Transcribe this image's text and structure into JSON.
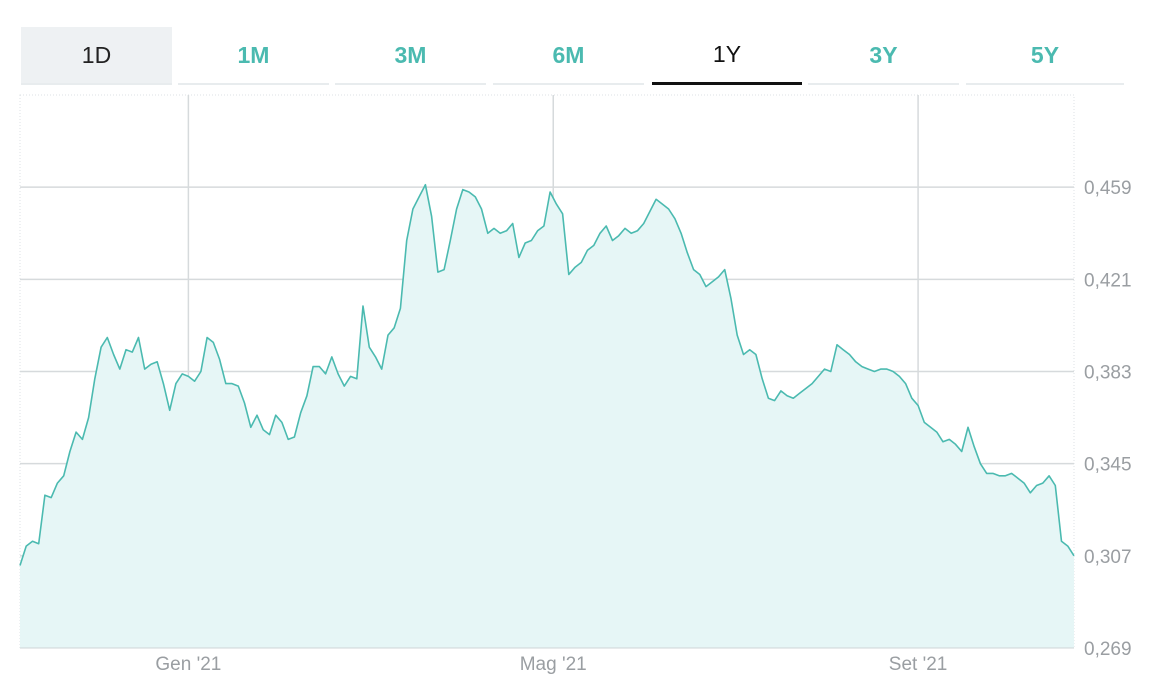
{
  "range_tabs": [
    {
      "label": "1D",
      "state": "highlighted"
    },
    {
      "label": "1M",
      "state": "normal"
    },
    {
      "label": "3M",
      "state": "normal"
    },
    {
      "label": "6M",
      "state": "normal"
    },
    {
      "label": "1Y",
      "state": "active"
    },
    {
      "label": "3Y",
      "state": "normal"
    },
    {
      "label": "5Y",
      "state": "normal"
    }
  ],
  "colors": {
    "line": "#4bbab0",
    "fill": "#e6f6f6",
    "grid": "#d6dadc",
    "tick_text": "#9a9ea2",
    "tab_text": "#4bbab0"
  },
  "chart_data": {
    "type": "area",
    "y_axis_side": "right",
    "ylim": [
      0.269,
      0.497
    ],
    "y_ticks": [
      {
        "value": 0.269,
        "label": "0,269"
      },
      {
        "value": 0.307,
        "label": "0,307"
      },
      {
        "value": 0.345,
        "label": "0,345"
      },
      {
        "value": 0.383,
        "label": "0,383"
      },
      {
        "value": 0.421,
        "label": "0,421"
      },
      {
        "value": 0.459,
        "label": "0,459"
      }
    ],
    "x_ticks": [
      {
        "day": 54,
        "label": "Gen '21"
      },
      {
        "day": 171,
        "label": "Mag '21"
      },
      {
        "day": 288,
        "label": "Set '21"
      }
    ],
    "x_range": [
      0,
      338
    ],
    "grid": true,
    "series": [
      {
        "x": [
          0,
          2,
          4,
          6,
          8,
          10,
          12,
          14,
          16,
          18,
          20,
          22,
          24,
          26,
          28,
          30,
          32,
          34,
          36,
          38,
          40,
          42,
          44,
          46,
          48,
          50,
          52,
          54,
          56,
          58,
          60,
          62,
          64,
          66,
          68,
          70,
          72,
          74,
          76,
          78,
          80,
          82,
          84,
          86,
          88,
          90,
          92,
          94,
          96,
          98,
          100,
          102,
          104,
          106,
          108,
          110,
          112,
          114,
          116,
          118,
          120,
          122,
          124,
          126,
          128,
          130,
          132,
          134,
          136,
          138,
          140,
          142,
          144,
          146,
          148,
          150,
          152,
          154,
          156,
          158,
          160,
          162,
          164,
          166,
          168,
          170,
          172,
          174,
          176,
          178,
          180,
          182,
          184,
          186,
          188,
          190,
          192,
          194,
          196,
          198,
          200,
          202,
          204,
          206,
          208,
          210,
          212,
          214,
          216,
          218,
          220,
          222,
          224,
          226,
          228,
          230,
          232,
          234,
          236,
          238,
          240,
          242,
          244,
          246,
          248,
          250,
          252,
          254,
          256,
          258,
          260,
          262,
          264,
          266,
          268,
          270,
          272,
          274,
          276,
          278,
          280,
          282,
          284,
          286,
          288,
          290,
          292,
          294,
          296,
          298,
          300,
          302,
          304,
          306,
          308,
          310,
          312,
          314,
          316,
          318,
          320,
          322,
          324,
          326,
          328,
          330,
          332,
          334,
          336,
          338
        ],
        "y": [
          0.303,
          0.311,
          0.313,
          0.312,
          0.332,
          0.331,
          0.337,
          0.34,
          0.35,
          0.358,
          0.355,
          0.364,
          0.38,
          0.393,
          0.397,
          0.39,
          0.384,
          0.392,
          0.391,
          0.397,
          0.384,
          0.386,
          0.387,
          0.378,
          0.367,
          0.378,
          0.382,
          0.381,
          0.379,
          0.383,
          0.397,
          0.395,
          0.388,
          0.378,
          0.378,
          0.377,
          0.37,
          0.36,
          0.365,
          0.359,
          0.357,
          0.365,
          0.362,
          0.355,
          0.356,
          0.366,
          0.373,
          0.385,
          0.385,
          0.382,
          0.389,
          0.382,
          0.377,
          0.381,
          0.38,
          0.41,
          0.393,
          0.389,
          0.384,
          0.398,
          0.401,
          0.409,
          0.437,
          0.45,
          0.455,
          0.46,
          0.447,
          0.424,
          0.425,
          0.437,
          0.45,
          0.458,
          0.457,
          0.455,
          0.45,
          0.44,
          0.442,
          0.44,
          0.441,
          0.444,
          0.43,
          0.436,
          0.437,
          0.441,
          0.443,
          0.457,
          0.452,
          0.448,
          0.423,
          0.426,
          0.428,
          0.433,
          0.435,
          0.44,
          0.443,
          0.437,
          0.439,
          0.442,
          0.44,
          0.441,
          0.444,
          0.449,
          0.454,
          0.452,
          0.45,
          0.446,
          0.44,
          0.432,
          0.425,
          0.423,
          0.418,
          0.42,
          0.422,
          0.425,
          0.413,
          0.398,
          0.39,
          0.392,
          0.39,
          0.38,
          0.372,
          0.371,
          0.375,
          0.373,
          0.372,
          0.374,
          0.376,
          0.378,
          0.381,
          0.384,
          0.383,
          0.394,
          0.392,
          0.39,
          0.387,
          0.385,
          0.384,
          0.383,
          0.384,
          0.384,
          0.383,
          0.381,
          0.378,
          0.372,
          0.369,
          0.362,
          0.36,
          0.358,
          0.354,
          0.355,
          0.353,
          0.35,
          0.36,
          0.352,
          0.345,
          0.341,
          0.341,
          0.34,
          0.34,
          0.341,
          0.339,
          0.337,
          0.333,
          0.336,
          0.337,
          0.34,
          0.336,
          0.313,
          0.311,
          0.307
        ]
      }
    ]
  }
}
